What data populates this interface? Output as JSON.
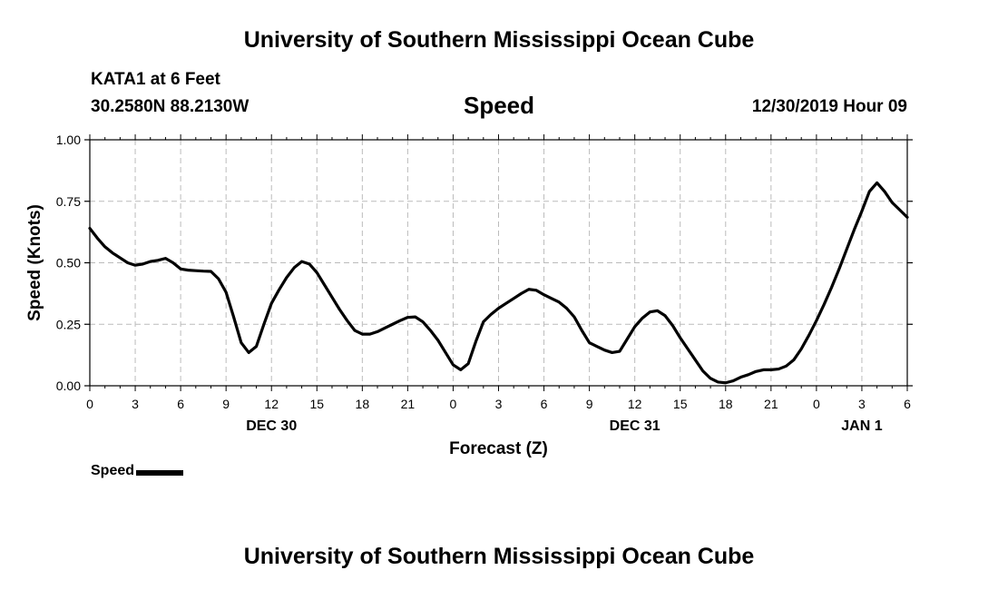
{
  "header": {
    "title": "University of Southern Mississippi Ocean Cube",
    "station": "KATA1 at 6 Feet",
    "coords": "30.2580N 88.2130W",
    "variable": "Speed",
    "datetime": "12/30/2019 Hour 09"
  },
  "footer": {
    "title": "University of Southern Mississippi Ocean Cube"
  },
  "legend": {
    "label": "Speed"
  },
  "chart_data": {
    "type": "line",
    "title": "Speed",
    "xlabel": "Forecast (Z)",
    "ylabel": "Speed (Knots)",
    "xlim": [
      0,
      54
    ],
    "ylim": [
      0,
      1
    ],
    "grid": true,
    "y_ticks": [
      0,
      0.25,
      0.5,
      0.75,
      1.0
    ],
    "y_tick_labels": [
      "0.00",
      "0.25",
      "0.50",
      "0.75",
      "1.00"
    ],
    "x_ticks": [
      0,
      3,
      6,
      9,
      12,
      15,
      18,
      21,
      24,
      27,
      30,
      33,
      36,
      39,
      42,
      45,
      48,
      51,
      54
    ],
    "x_tick_labels": [
      "0",
      "3",
      "6",
      "9",
      "12",
      "15",
      "18",
      "21",
      "0",
      "3",
      "6",
      "9",
      "12",
      "15",
      "18",
      "21",
      "0",
      "3",
      "6"
    ],
    "date_labels": [
      {
        "x": 12,
        "label": "DEC 30"
      },
      {
        "x": 36,
        "label": "DEC 31"
      },
      {
        "x": 51,
        "label": "JAN 1"
      }
    ],
    "series": [
      {
        "name": "Speed",
        "color": "#000000",
        "x": [
          0,
          0.5,
          1,
          1.5,
          2,
          2.5,
          3,
          3.5,
          4,
          4.5,
          5,
          5.5,
          6,
          6.5,
          7,
          7.5,
          8,
          8.5,
          9,
          9.5,
          10,
          10.5,
          11,
          11.5,
          12,
          12.5,
          13,
          13.5,
          14,
          14.5,
          15,
          15.5,
          16,
          16.5,
          17,
          17.5,
          18,
          18.5,
          19,
          19.5,
          20,
          20.5,
          21,
          21.5,
          22,
          22.5,
          23,
          23.5,
          24,
          24.5,
          25,
          25.5,
          26,
          26.5,
          27,
          27.5,
          28,
          28.5,
          29,
          29.5,
          30,
          30.5,
          31,
          31.5,
          32,
          32.5,
          33,
          33.5,
          34,
          34.5,
          35,
          35.5,
          36,
          36.5,
          37,
          37.5,
          38,
          38.5,
          39,
          39.5,
          40,
          40.5,
          41,
          41.5,
          42,
          42.5,
          43,
          43.5,
          44,
          44.5,
          45,
          45.5,
          46,
          46.5,
          47,
          47.5,
          48,
          48.5,
          49,
          49.5,
          50,
          50.5,
          51,
          51.5,
          52,
          52.5,
          53,
          53.5,
          54
        ],
        "values": [
          0.64,
          0.6,
          0.565,
          0.54,
          0.52,
          0.5,
          0.49,
          0.495,
          0.505,
          0.51,
          0.518,
          0.5,
          0.475,
          0.47,
          0.468,
          0.466,
          0.465,
          0.435,
          0.38,
          0.28,
          0.175,
          0.135,
          0.16,
          0.25,
          0.335,
          0.39,
          0.44,
          0.48,
          0.505,
          0.495,
          0.46,
          0.41,
          0.36,
          0.31,
          0.265,
          0.225,
          0.21,
          0.21,
          0.22,
          0.235,
          0.25,
          0.265,
          0.278,
          0.28,
          0.26,
          0.225,
          0.185,
          0.135,
          0.085,
          0.065,
          0.09,
          0.18,
          0.26,
          0.29,
          0.315,
          0.335,
          0.355,
          0.375,
          0.392,
          0.388,
          0.37,
          0.355,
          0.34,
          0.315,
          0.28,
          0.225,
          0.175,
          0.16,
          0.145,
          0.135,
          0.14,
          0.19,
          0.24,
          0.275,
          0.3,
          0.305,
          0.285,
          0.245,
          0.195,
          0.15,
          0.105,
          0.06,
          0.03,
          0.015,
          0.012,
          0.02,
          0.035,
          0.045,
          0.058,
          0.065,
          0.065,
          0.068,
          0.08,
          0.105,
          0.15,
          0.205,
          0.265,
          0.33,
          0.4,
          0.475,
          0.555,
          0.635,
          0.71,
          0.79,
          0.825,
          0.79,
          0.745,
          0.715,
          0.685
        ]
      }
    ]
  }
}
